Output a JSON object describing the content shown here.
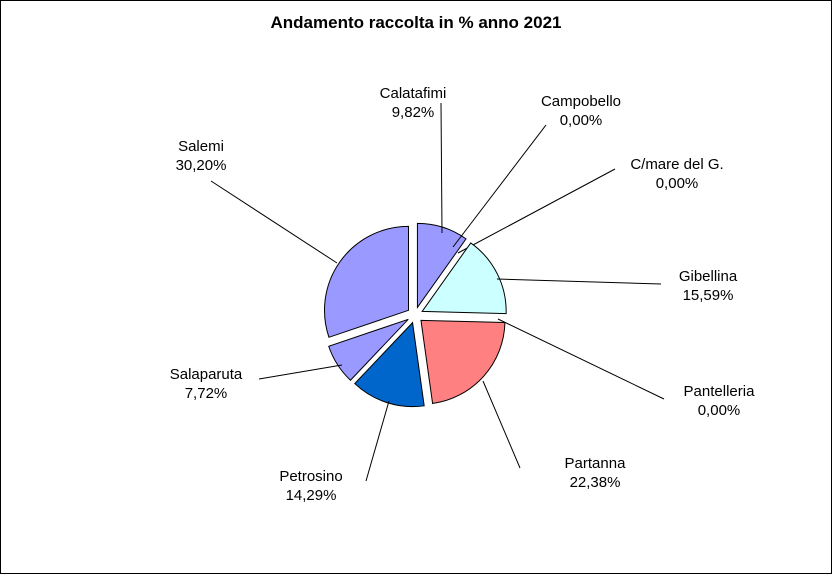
{
  "chart_data": {
    "type": "pie",
    "title": "Andamento raccolta in % anno 2021",
    "slices": [
      {
        "name": "Calatafimi",
        "value_label": "9,82%",
        "value": 9.82,
        "color": "#9999ff"
      },
      {
        "name": "Campobello",
        "value_label": "0,00%",
        "value": 0.0,
        "color": "#993366"
      },
      {
        "name": "C/mare del G.",
        "value_label": "0,00%",
        "value": 0.0,
        "color": "#ffffcc"
      },
      {
        "name": "Gibellina",
        "value_label": "15,59%",
        "value": 15.59,
        "color": "#ccffff"
      },
      {
        "name": "Pantelleria",
        "value_label": "0,00%",
        "value": 0.0,
        "color": "#660066"
      },
      {
        "name": "Partanna",
        "value_label": "22,38%",
        "value": 22.38,
        "color": "#ff8080"
      },
      {
        "name": "Petrosino",
        "value_label": "14,29%",
        "value": 14.29,
        "color": "#0066cc"
      },
      {
        "name": "Salaparuta",
        "value_label": "7,72%",
        "value": 7.72,
        "color": "#9999ff"
      },
      {
        "name": "Salemi",
        "value_label": "30,20%",
        "value": 30.2,
        "color": "#9999ff"
      }
    ],
    "legend": "none"
  }
}
